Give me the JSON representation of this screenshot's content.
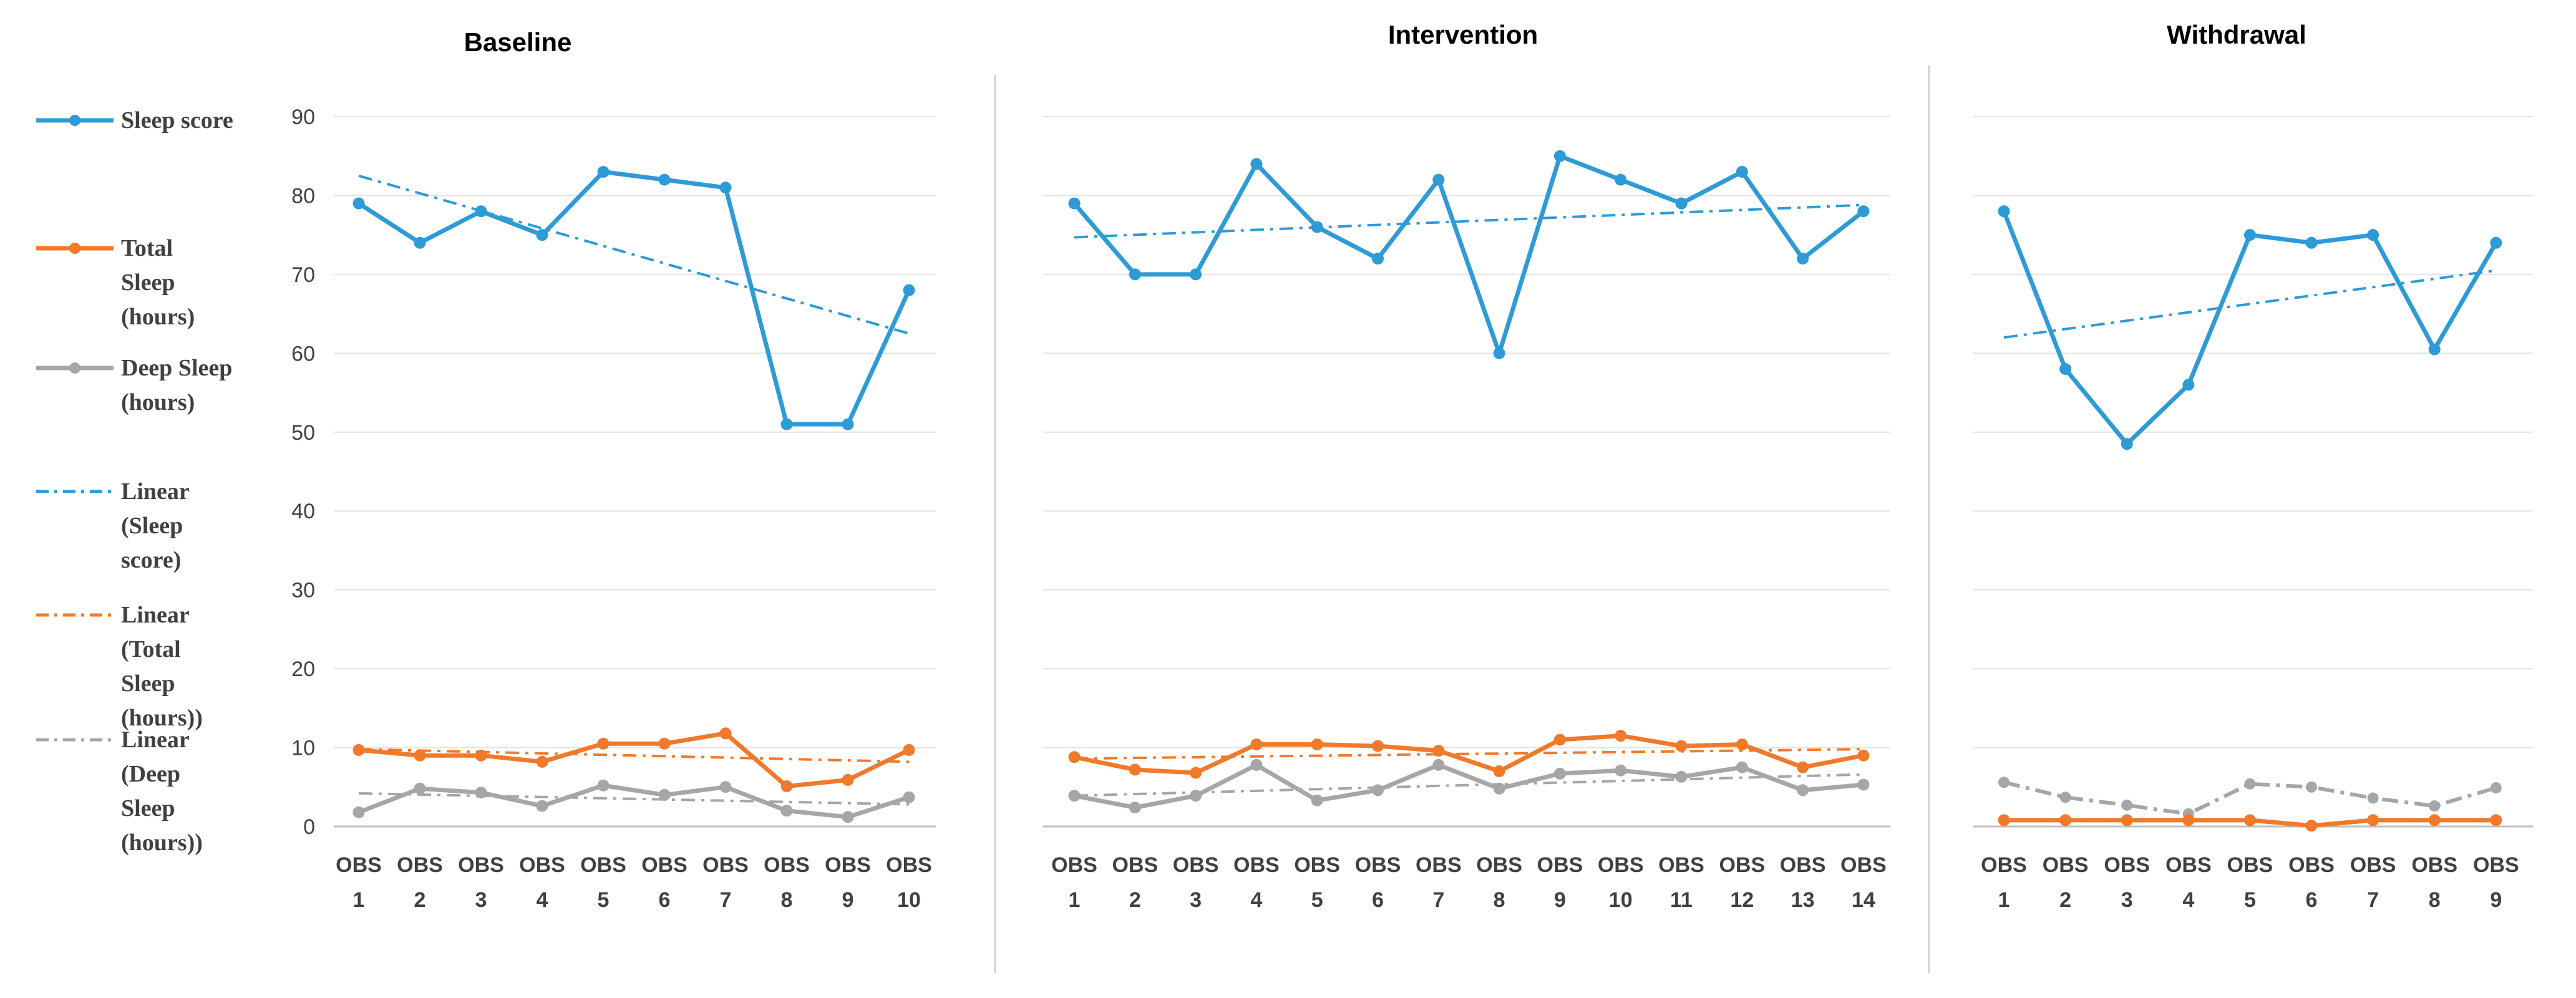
{
  "colors": {
    "sleep_score": "#2E9BD6",
    "total_sleep": "#F07A2A",
    "deep_sleep": "#A6A6A6",
    "grid": "#E3E3E3",
    "divider": "#D0D0D0",
    "text": "#404040"
  },
  "legend": {
    "items": [
      {
        "key": "sleep",
        "lines": [
          "Sleep score"
        ]
      },
      {
        "key": "total",
        "lines": [
          "Total",
          "Sleep",
          "(hours)"
        ]
      },
      {
        "key": "deep",
        "lines": [
          "Deep Sleep",
          "(hours)"
        ]
      },
      {
        "key": "lin_sleep",
        "lines": [
          "Linear",
          "(Sleep",
          "score)"
        ]
      },
      {
        "key": "lin_total",
        "lines": [
          "Linear",
          "(Total",
          "Sleep",
          "(hours))"
        ]
      },
      {
        "key": "lin_deep",
        "lines": [
          "Linear",
          "(Deep",
          "Sleep",
          "(hours))"
        ]
      }
    ]
  },
  "y_ticks": [
    "0",
    "10",
    "20",
    "30",
    "40",
    "50",
    "60",
    "70",
    "80",
    "90"
  ],
  "chart_data": [
    {
      "type": "line",
      "title": "Baseline",
      "categories": [
        [
          "OBS",
          "1"
        ],
        [
          "OBS",
          "2"
        ],
        [
          "OBS",
          "3"
        ],
        [
          "OBS",
          "4"
        ],
        [
          "OBS",
          "5"
        ],
        [
          "OBS",
          "6"
        ],
        [
          "OBS",
          "7"
        ],
        [
          "OBS",
          "8"
        ],
        [
          "OBS",
          "9"
        ],
        [
          "OBS",
          "10"
        ]
      ],
      "ylim": [
        0,
        90
      ],
      "grid": true,
      "series": [
        {
          "name": "Sleep score",
          "key": "sleep",
          "values": [
            79,
            74,
            78,
            75,
            83,
            82,
            81,
            51,
            51,
            68
          ]
        },
        {
          "name": "Total Sleep (hours)",
          "key": "total",
          "values": [
            9.7,
            9.0,
            9.0,
            8.2,
            10.5,
            10.5,
            11.8,
            5.1,
            5.9,
            9.7
          ]
        },
        {
          "name": "Deep Sleep (hours)",
          "key": "deep",
          "values": [
            1.8,
            4.8,
            4.3,
            2.6,
            5.2,
            4.0,
            5.0,
            2.0,
            1.2,
            3.7
          ]
        }
      ],
      "trendlines": [
        {
          "name": "Linear (Sleep score)",
          "key": "lin_sleep",
          "from": 82.5,
          "to": 62.5
        },
        {
          "name": "Linear (Total Sleep (hours))",
          "key": "lin_total",
          "from": 9.8,
          "to": 8.2
        },
        {
          "name": "Linear (Deep Sleep (hours))",
          "key": "lin_deep",
          "from": 4.2,
          "to": 2.8
        }
      ]
    },
    {
      "type": "line",
      "title": "Intervention",
      "categories": [
        [
          "OBS",
          "1"
        ],
        [
          "OBS",
          "2"
        ],
        [
          "OBS",
          "3"
        ],
        [
          "OBS",
          "4"
        ],
        [
          "OBS",
          "5"
        ],
        [
          "OBS",
          "6"
        ],
        [
          "OBS",
          "7"
        ],
        [
          "OBS",
          "8"
        ],
        [
          "OBS",
          "9"
        ],
        [
          "OBS",
          "10"
        ],
        [
          "OBS",
          "11"
        ],
        [
          "OBS",
          "12"
        ],
        [
          "OBS",
          "13"
        ],
        [
          "OBS",
          "14"
        ]
      ],
      "ylim": [
        0,
        90
      ],
      "grid": true,
      "series": [
        {
          "name": "Sleep score",
          "key": "sleep",
          "values": [
            79,
            70,
            70,
            84,
            76,
            72,
            82,
            60,
            85,
            82,
            79,
            83,
            72,
            78
          ]
        },
        {
          "name": "Total Sleep (hours)",
          "key": "total",
          "values": [
            8.8,
            7.2,
            6.8,
            10.4,
            10.4,
            10.2,
            9.6,
            7.0,
            11.0,
            11.5,
            10.2,
            10.4,
            7.5,
            9.0
          ]
        },
        {
          "name": "Deep Sleep (hours)",
          "key": "deep",
          "values": [
            3.9,
            2.4,
            3.9,
            7.8,
            3.3,
            4.6,
            7.8,
            4.8,
            6.7,
            7.1,
            6.3,
            7.5,
            4.6,
            5.3
          ]
        }
      ],
      "trendlines": [
        {
          "name": "Linear (Sleep score)",
          "key": "lin_sleep",
          "from": 74.7,
          "to": 78.8
        },
        {
          "name": "Linear (Total Sleep (hours))",
          "key": "lin_total",
          "from": 8.6,
          "to": 9.8
        },
        {
          "name": "Linear (Deep Sleep (hours))",
          "key": "lin_deep",
          "from": 3.9,
          "to": 6.6
        }
      ]
    },
    {
      "type": "line",
      "title": "Withdrawal",
      "categories": [
        [
          "OBS",
          "1"
        ],
        [
          "OBS",
          "2"
        ],
        [
          "OBS",
          "3"
        ],
        [
          "OBS",
          "4"
        ],
        [
          "OBS",
          "5"
        ],
        [
          "OBS",
          "6"
        ],
        [
          "OBS",
          "7"
        ],
        [
          "OBS",
          "8"
        ],
        [
          "OBS",
          "9"
        ]
      ],
      "ylim": [
        0,
        90
      ],
      "grid": true,
      "series": [
        {
          "name": "Sleep score",
          "key": "sleep",
          "values": [
            78,
            58,
            48.5,
            56,
            75,
            74,
            75,
            60.5,
            74
          ]
        },
        {
          "name": "Total Sleep (hours)",
          "key": "total",
          "values": [
            0.8,
            0.8,
            0.8,
            0.8,
            0.8,
            0.1,
            0.8,
            0.8,
            0.8
          ]
        }
      ],
      "trendlines": [
        {
          "name": "Linear (Sleep score)",
          "key": "lin_sleep",
          "from": 62,
          "to": 70.5
        },
        {
          "name": "Linear (Deep Sleep (hours))",
          "key": "deep_dashdot",
          "values": [
            5.6,
            3.7,
            2.7,
            1.6,
            5.4,
            5.0,
            3.6,
            2.6,
            4.9
          ]
        }
      ]
    }
  ]
}
